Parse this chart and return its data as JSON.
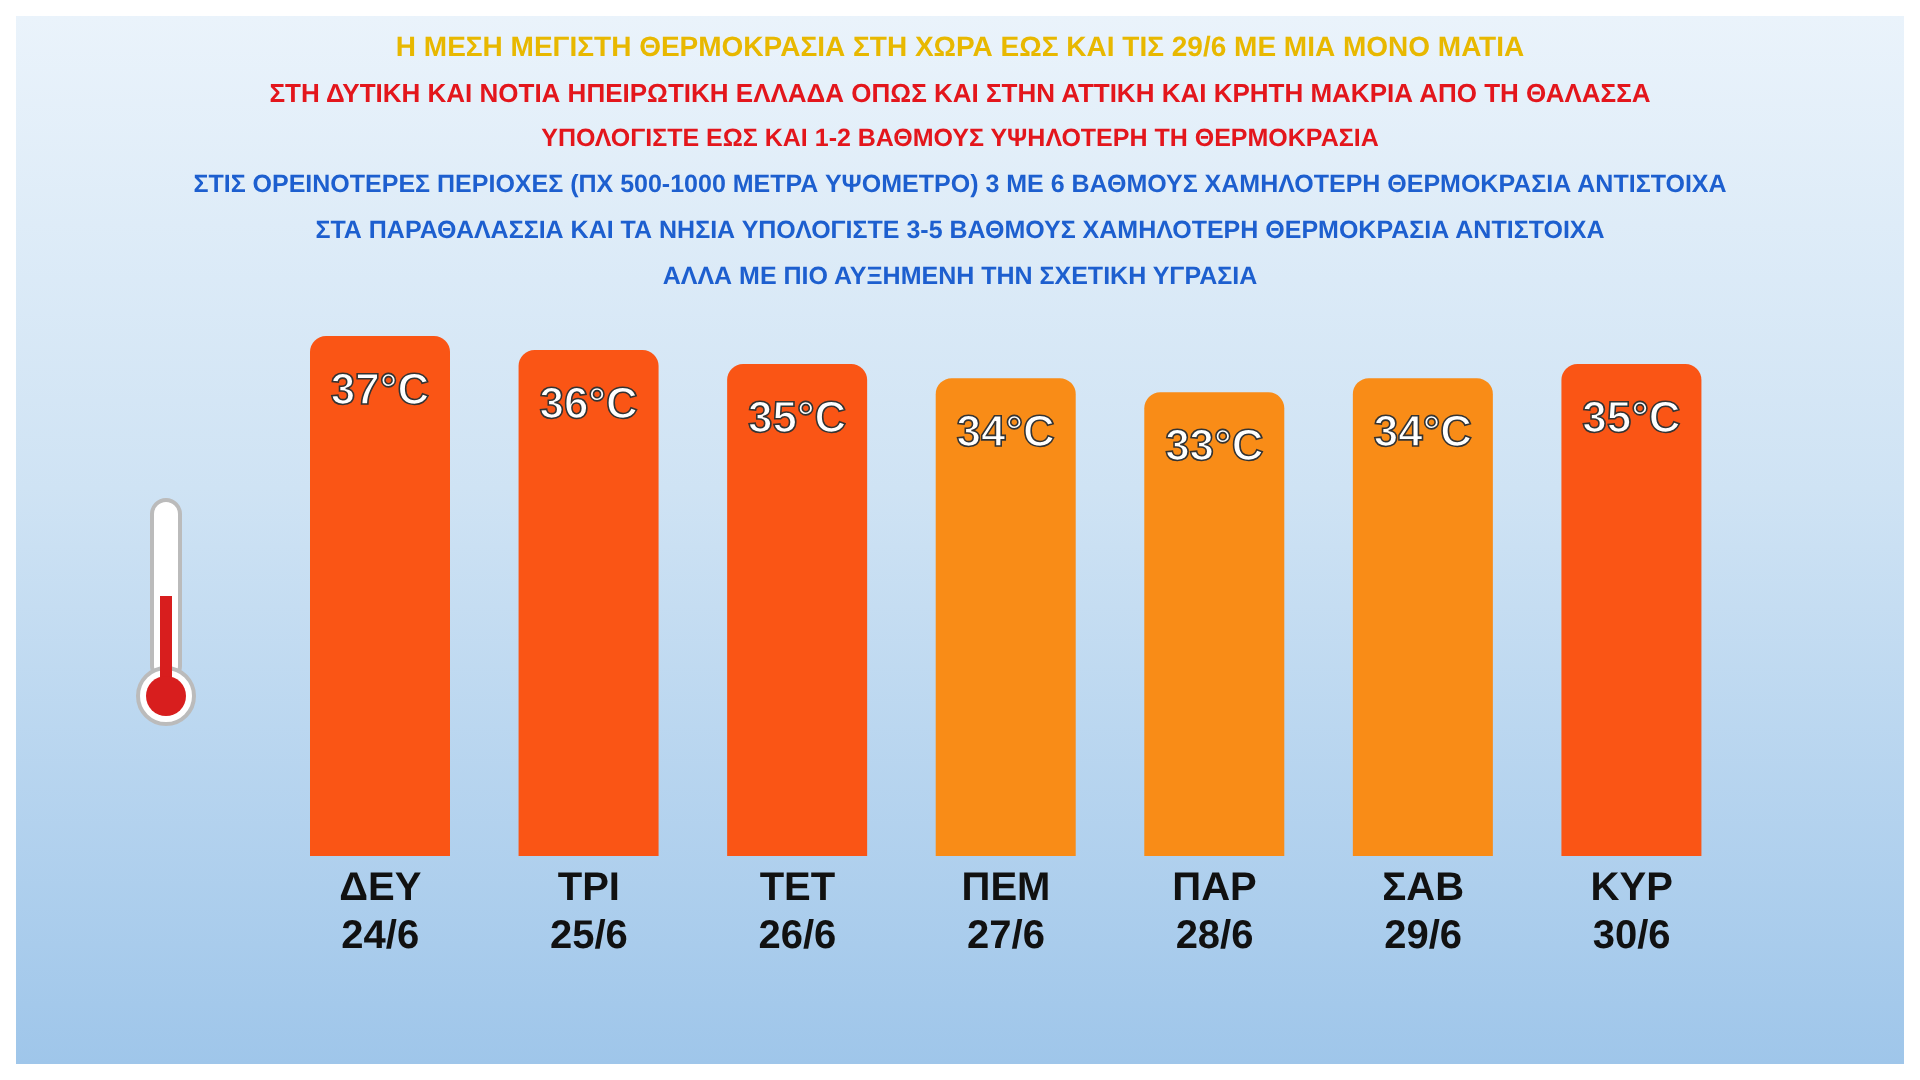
{
  "chart_data": {
    "type": "bar",
    "title": "Η ΜΕΣΗ ΜΕΓΙΣΤΗ ΘΕΡΜΟΚΡΑΣΙΑ ΣΤΗ ΧΩΡΑ ΕΩΣ ΚΑΙ ΤΙΣ 29/6 ΜΕ ΜΙΑ ΜΟΝΟ ΜΑΤΙΑ",
    "subtitle": "ΣΤΗ ΔΥΤΙΚΗ ΚΑΙ ΝΟΤΙΑ ΗΠΕΙΡΩΤΙΚΗ ΕΛΛΑΔΑ ΟΠΩΣ ΚΑΙ ΣΤΗΝ ΑΤΤΙΚΗ ΚΑΙ ΚΡΗΤΗ ΜΑΚΡΙΑ ΑΠΟ ΤΗ ΘΑΛΑΣΣΑ",
    "annotations": [
      "ΥΠΟΛΟΓΙΣΤΕ ΕΩΣ ΚΑΙ 1-2 ΒΑΘΜΟΥΣ ΥΨΗΛΟΤΕΡΗ ΤΗ ΘΕΡΜΟΚΡΑΣΙΑ",
      "ΣΤΙΣ ΟΡΕΙΝΟΤΕΡΕΣ ΠΕΡΙΟΧΕΣ (ΠΧ 500-1000 ΜΕΤΡΑ ΥΨΟΜΕΤΡΟ) 3 ΜΕ 6 ΒΑΘΜΟΥΣ ΧΑΜΗΛΟΤΕΡΗ ΘΕΡΜΟΚΡΑΣΙΑ ΑΝΤΙΣΤΟΙΧΑ",
      "ΣΤΑ ΠΑΡΑΘΑΛΑΣΣΙΑ ΚΑΙ ΤΑ ΝΗΣΙΑ ΥΠΟΛΟΓΙΣΤΕ 3-5 ΒΑΘΜΟΥΣ ΧΑΜΗΛΟΤΕΡΗ ΘΕΡΜΟΚΡΑΣΙΑ ΑΝΤΙΣΤΟΙΧΑ",
      "ΑΛΛΑ ΜΕ ΠΙΟ ΑΥΞΗΜΕΝΗ ΤΗΝ ΣΧΕΤΙΚΗ ΥΓΡΑΣΙΑ"
    ],
    "categories": [
      "ΔΕΥ 24/6",
      "ΤΡΙ 25/6",
      "ΤΕΤ 26/6",
      "ΠΕΜ 27/6",
      "ΠΑΡ 28/6",
      "ΣΑΒ 29/6",
      "ΚΥΡ 30/6"
    ],
    "values": [
      37,
      36,
      35,
      34,
      33,
      34,
      35
    ],
    "value_labels": [
      "37°C",
      "36°C",
      "35°C",
      "34°C",
      "33°C",
      "34°C",
      "35°C"
    ],
    "colors": [
      "#fa5515",
      "#fa5515",
      "#fa5515",
      "#f98c17",
      "#f98c17",
      "#f98c17",
      "#fa5515"
    ]
  }
}
